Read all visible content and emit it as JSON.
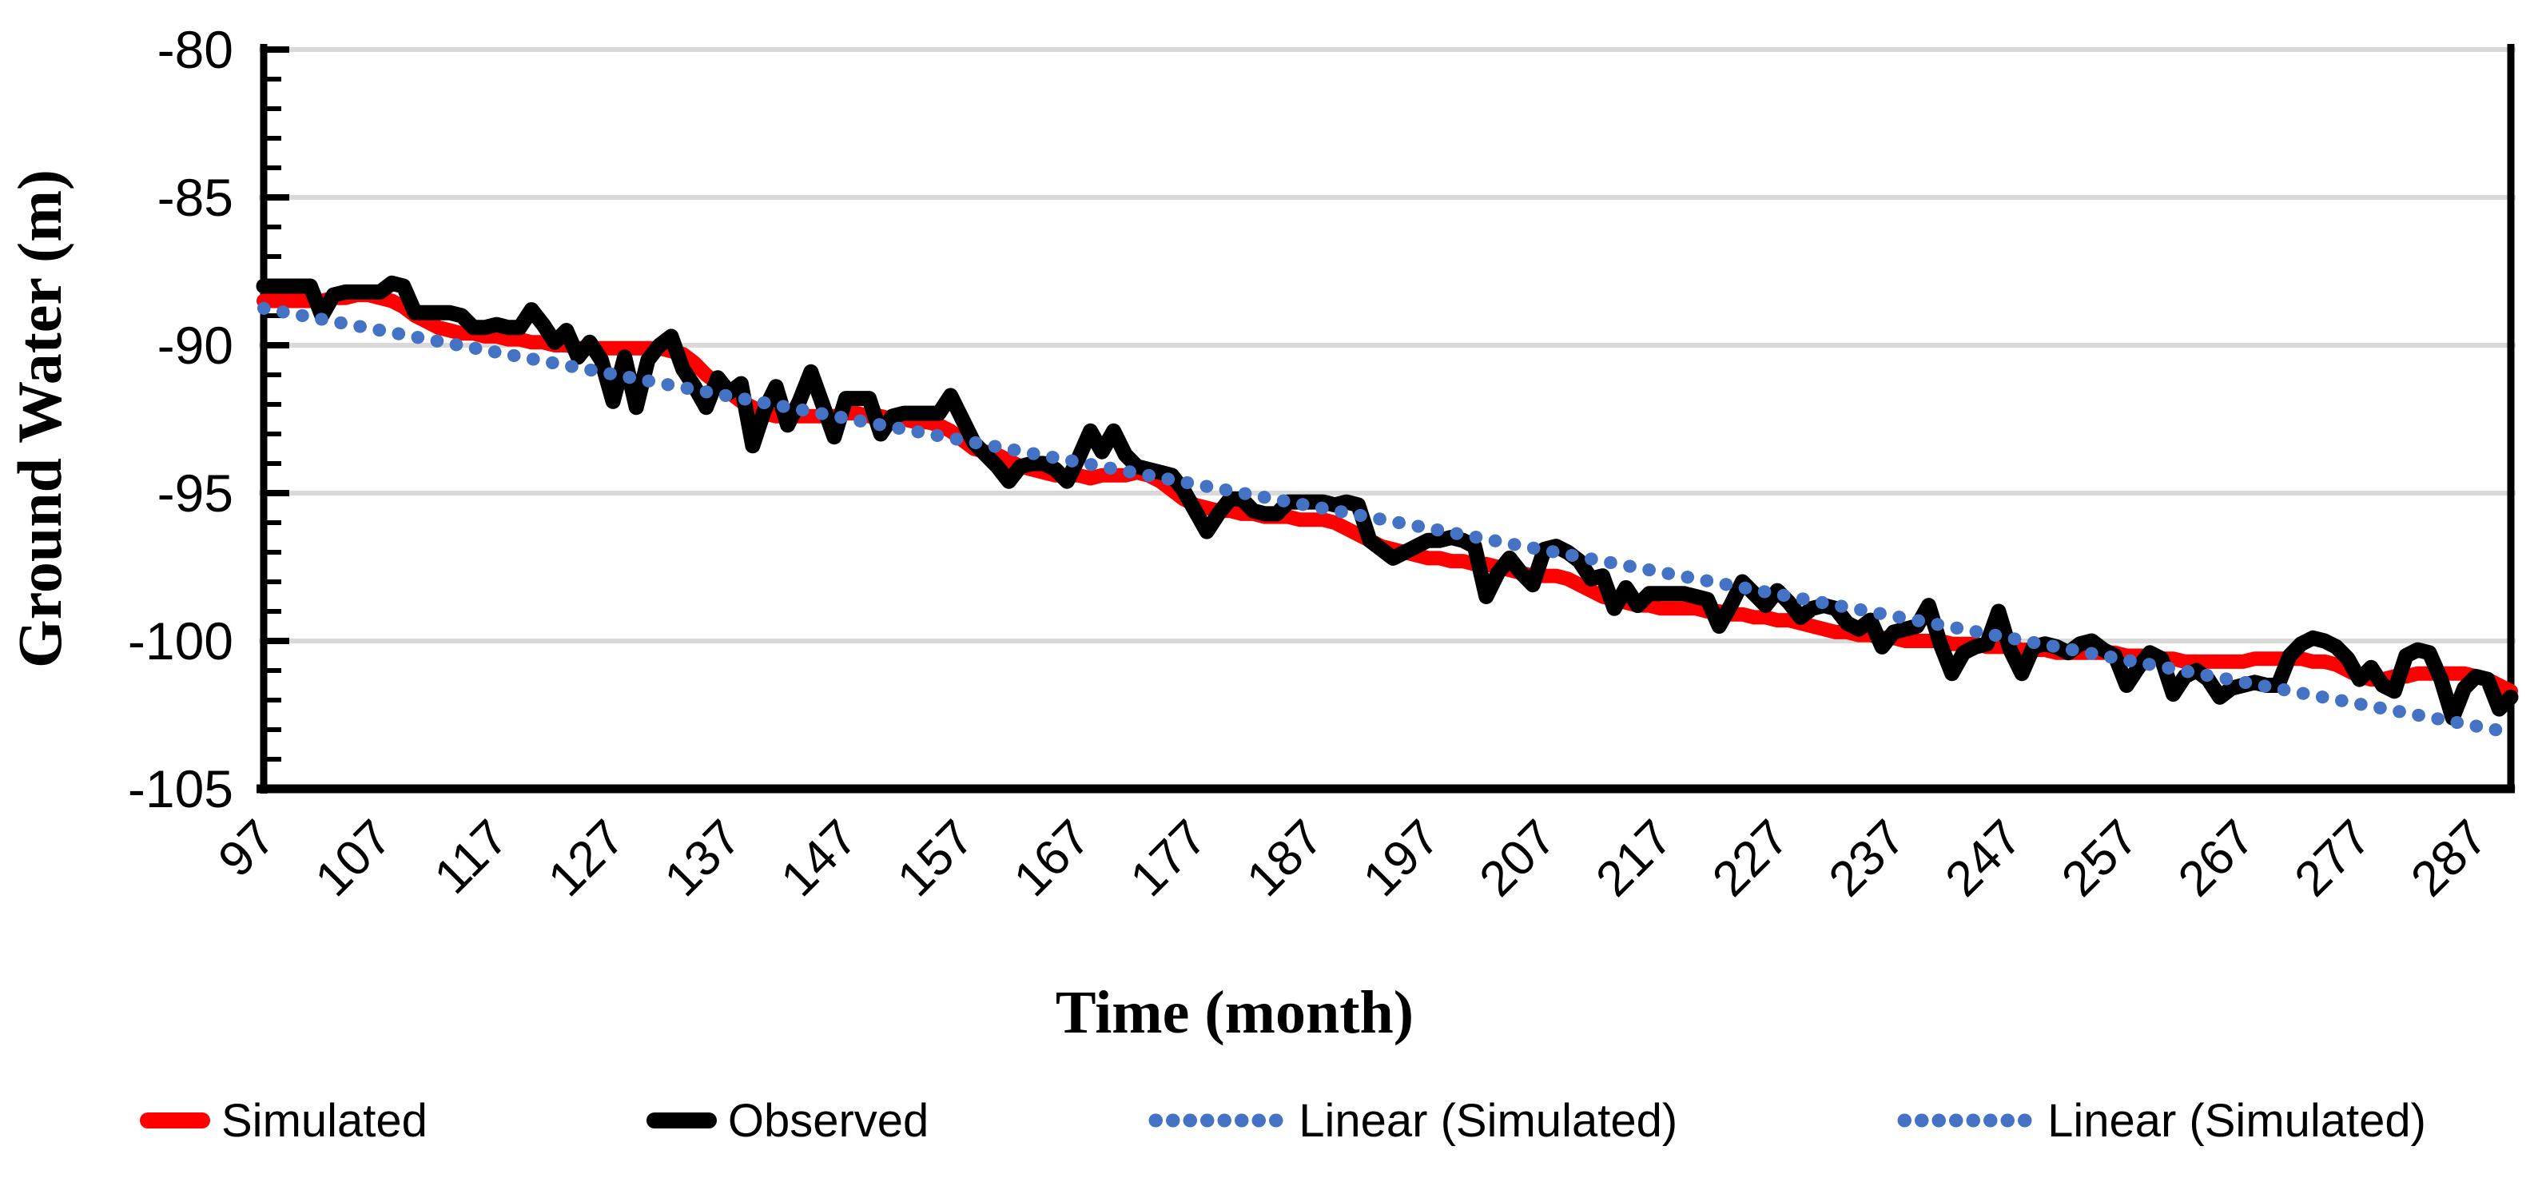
{
  "chart_data": {
    "type": "line",
    "title": "",
    "xlabel": "Time (month)",
    "ylabel": "Ground Water (m)",
    "x_start": 97,
    "x_end": 290,
    "x_tick_interval": 10,
    "x_tick_labels": [
      "97",
      "107",
      "117",
      "127",
      "137",
      "147",
      "157",
      "167",
      "177",
      "187",
      "197",
      "207",
      "217",
      "227",
      "237",
      "247",
      "257",
      "267",
      "277",
      "287"
    ],
    "ylim": [
      -105,
      -80
    ],
    "y_tick_interval": 5,
    "y_minor_tick_interval": 1,
    "y_tick_labels": [
      "-80",
      "-85",
      "-90",
      "-95",
      "-100",
      "-105"
    ],
    "grid": "horizontal-gray",
    "gridline_color": "#D9D9D9",
    "axis_color": "#000000",
    "legend_position": "bottom",
    "series": [
      {
        "name": "Simulated",
        "color": "#FF0000",
        "style": "solid",
        "values": [
          -88.5,
          -88.5,
          -88.5,
          -88.5,
          -88.5,
          -88.5,
          -88.4,
          -88.4,
          -88.3,
          -88.3,
          -88.4,
          -88.5,
          -88.7,
          -89.0,
          -89.2,
          -89.4,
          -89.5,
          -89.6,
          -89.6,
          -89.7,
          -89.7,
          -89.8,
          -89.8,
          -89.9,
          -89.9,
          -90.0,
          -90.0,
          -90.1,
          -90.1,
          -90.1,
          -90.1,
          -90.1,
          -90.1,
          -90.1,
          -90.1,
          -90.2,
          -90.3,
          -90.6,
          -91.0,
          -91.3,
          -91.6,
          -91.9,
          -92.1,
          -92.3,
          -92.4,
          -92.4,
          -92.4,
          -92.4,
          -92.4,
          -92.4,
          -92.3,
          -92.3,
          -92.4,
          -92.4,
          -92.5,
          -92.5,
          -92.6,
          -92.6,
          -92.7,
          -92.9,
          -93.2,
          -93.5,
          -93.6,
          -93.7,
          -93.9,
          -94.1,
          -94.2,
          -94.3,
          -94.4,
          -94.4,
          -94.4,
          -94.5,
          -94.4,
          -94.4,
          -94.4,
          -94.3,
          -94.4,
          -94.6,
          -94.9,
          -95.2,
          -95.4,
          -95.5,
          -95.6,
          -95.6,
          -95.7,
          -95.7,
          -95.8,
          -95.8,
          -95.8,
          -95.9,
          -95.9,
          -95.9,
          -96.0,
          -96.2,
          -96.4,
          -96.6,
          -96.8,
          -96.9,
          -97.0,
          -97.1,
          -97.2,
          -97.2,
          -97.3,
          -97.3,
          -97.4,
          -97.4,
          -97.5,
          -97.6,
          -97.7,
          -97.8,
          -97.8,
          -97.8,
          -97.9,
          -98.1,
          -98.3,
          -98.5,
          -98.6,
          -98.7,
          -98.8,
          -98.8,
          -98.9,
          -98.9,
          -98.9,
          -98.9,
          -99.0,
          -99.0,
          -99.1,
          -99.1,
          -99.2,
          -99.2,
          -99.3,
          -99.3,
          -99.4,
          -99.5,
          -99.6,
          -99.7,
          -99.7,
          -99.8,
          -99.8,
          -99.9,
          -99.9,
          -100.0,
          -100.0,
          -100.0,
          -100.0,
          -100.1,
          -100.1,
          -100.1,
          -100.2,
          -100.2,
          -100.2,
          -100.3,
          -100.3,
          -100.3,
          -100.4,
          -100.4,
          -100.4,
          -100.4,
          -100.4,
          -100.4,
          -100.5,
          -100.5,
          -100.5,
          -100.6,
          -100.6,
          -100.7,
          -100.7,
          -100.7,
          -100.7,
          -100.7,
          -100.7,
          -100.6,
          -100.6,
          -100.6,
          -100.6,
          -100.6,
          -100.7,
          -100.7,
          -100.8,
          -101.0,
          -101.2,
          -101.3,
          -101.3,
          -101.2,
          -101.2,
          -101.1,
          -101.1,
          -101.1,
          -101.1,
          -101.1,
          -101.2,
          -101.3,
          -101.5,
          -101.7
        ]
      },
      {
        "name": "Observed",
        "color": "#000000",
        "style": "solid",
        "values": [
          -88.0,
          -88.0,
          -88.0,
          -88.0,
          -88.0,
          -89.0,
          -88.3,
          -88.2,
          -88.2,
          -88.2,
          -88.2,
          -87.9,
          -88.0,
          -88.9,
          -88.9,
          -88.9,
          -88.9,
          -89.0,
          -89.4,
          -89.4,
          -89.3,
          -89.4,
          -89.4,
          -88.8,
          -89.3,
          -89.9,
          -89.5,
          -90.4,
          -89.9,
          -90.5,
          -91.9,
          -90.4,
          -92.1,
          -90.5,
          -90.0,
          -89.7,
          -90.8,
          -91.4,
          -92.1,
          -91.1,
          -91.6,
          -91.3,
          -93.4,
          -92.2,
          -91.4,
          -92.7,
          -91.9,
          -90.9,
          -92.0,
          -93.1,
          -91.8,
          -91.8,
          -91.8,
          -93.0,
          -92.4,
          -92.3,
          -92.3,
          -92.3,
          -92.3,
          -91.7,
          -92.5,
          -93.3,
          -93.7,
          -94.1,
          -94.6,
          -94.1,
          -94.0,
          -94.0,
          -94.2,
          -94.6,
          -93.8,
          -92.9,
          -93.6,
          -92.9,
          -93.7,
          -94.1,
          -94.2,
          -94.3,
          -94.4,
          -94.9,
          -95.6,
          -96.3,
          -95.7,
          -95.2,
          -95.2,
          -95.6,
          -95.7,
          -95.7,
          -95.3,
          -95.3,
          -95.3,
          -95.3,
          -95.4,
          -95.3,
          -95.4,
          -96.6,
          -96.9,
          -97.2,
          -97.0,
          -96.8,
          -96.6,
          -96.6,
          -96.5,
          -96.6,
          -96.8,
          -98.5,
          -97.7,
          -97.2,
          -97.7,
          -98.1,
          -96.9,
          -96.8,
          -97.0,
          -97.3,
          -97.9,
          -97.8,
          -98.9,
          -98.2,
          -98.8,
          -98.4,
          -98.4,
          -98.4,
          -98.4,
          -98.5,
          -98.6,
          -99.5,
          -98.8,
          -98.0,
          -98.4,
          -98.8,
          -98.3,
          -98.7,
          -99.2,
          -98.9,
          -98.8,
          -98.9,
          -99.4,
          -99.6,
          -99.3,
          -100.2,
          -99.7,
          -99.6,
          -99.5,
          -98.8,
          -100.1,
          -101.1,
          -100.4,
          -100.2,
          -100.1,
          -99.0,
          -100.3,
          -101.1,
          -100.2,
          -100.1,
          -100.2,
          -100.4,
          -100.1,
          -100.0,
          -100.3,
          -100.5,
          -101.5,
          -100.9,
          -100.4,
          -100.6,
          -101.8,
          -101.2,
          -101.0,
          -101.3,
          -101.9,
          -101.6,
          -101.5,
          -101.4,
          -101.5,
          -101.5,
          -100.5,
          -100.1,
          -99.9,
          -100.0,
          -100.2,
          -100.6,
          -101.3,
          -100.9,
          -101.5,
          -101.7,
          -100.5,
          -100.3,
          -100.4,
          -101.3,
          -102.6,
          -101.6,
          -101.2,
          -101.3,
          -102.3,
          -101.9
        ]
      },
      {
        "name": "Linear (Simulated)",
        "color": "#4472C4",
        "style": "round-dotted",
        "trend": {
          "x1": 97,
          "y1": -88.75,
          "x2": 290,
          "y2": -103.1
        }
      },
      {
        "name": "Linear (Simulated)",
        "color": "#4472C4",
        "style": "round-dotted",
        "trend": {
          "x1": 97,
          "y1": -88.75,
          "x2": 290,
          "y2": -103.1
        }
      }
    ]
  },
  "legend": {
    "items": [
      {
        "label": "Simulated"
      },
      {
        "label": "Observed"
      },
      {
        "label": "Linear (Simulated)"
      },
      {
        "label": "Linear (Simulated)"
      }
    ]
  }
}
